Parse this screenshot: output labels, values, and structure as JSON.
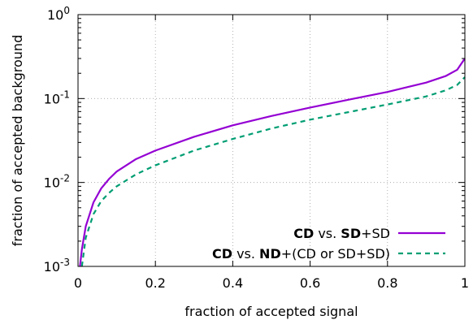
{
  "chart_data": {
    "type": "line",
    "xlabel": "fraction of accepted signal",
    "ylabel": "fraction of accepted background",
    "xlim": [
      0,
      1
    ],
    "ylim": [
      0.001,
      1
    ],
    "yscale": "log",
    "grid": true,
    "legend_position": "bottom-right",
    "x_ticks": [
      "0",
      "0.2",
      "0.4",
      "0.6",
      "0.8",
      "1"
    ],
    "x_tick_values": [
      0,
      0.2,
      0.4,
      0.6,
      0.8,
      1
    ],
    "y_ticks": [
      {
        "value": 0.001,
        "base": "10",
        "exp": "-3"
      },
      {
        "value": 0.01,
        "base": "10",
        "exp": "-2"
      },
      {
        "value": 0.1,
        "base": "10",
        "exp": "-1"
      },
      {
        "value": 1,
        "base": "10",
        "exp": "0"
      }
    ],
    "series": [
      {
        "legend": [
          {
            "text": "CD",
            "bold": true
          },
          {
            "text": " vs. ",
            "bold": false
          },
          {
            "text": "SD",
            "bold": true
          },
          {
            "text": "+SD",
            "bold": false
          }
        ],
        "color": "#9400d3",
        "style": "solid",
        "x": [
          0.005,
          0.01,
          0.02,
          0.04,
          0.06,
          0.08,
          0.1,
          0.15,
          0.2,
          0.3,
          0.4,
          0.5,
          0.6,
          0.7,
          0.8,
          0.9,
          0.95,
          0.98,
          1.0
        ],
        "y": [
          0.001,
          0.0016,
          0.003,
          0.0058,
          0.0085,
          0.011,
          0.0135,
          0.019,
          0.024,
          0.035,
          0.048,
          0.062,
          0.078,
          0.097,
          0.12,
          0.155,
          0.185,
          0.22,
          0.3
        ]
      },
      {
        "legend": [
          {
            "text": "CD",
            "bold": true
          },
          {
            "text": " vs. ",
            "bold": false
          },
          {
            "text": "ND",
            "bold": true
          },
          {
            "text": "+(CD or SD+SD)",
            "bold": false
          }
        ],
        "color": "#009e73",
        "style": "dashed",
        "x": [
          0.01,
          0.02,
          0.04,
          0.06,
          0.08,
          0.1,
          0.15,
          0.2,
          0.3,
          0.4,
          0.5,
          0.6,
          0.7,
          0.8,
          0.9,
          0.95,
          0.98,
          1.0
        ],
        "y": [
          0.001,
          0.0022,
          0.0042,
          0.006,
          0.0075,
          0.009,
          0.0125,
          0.016,
          0.024,
          0.033,
          0.044,
          0.056,
          0.069,
          0.085,
          0.106,
          0.125,
          0.145,
          0.18
        ]
      }
    ]
  }
}
